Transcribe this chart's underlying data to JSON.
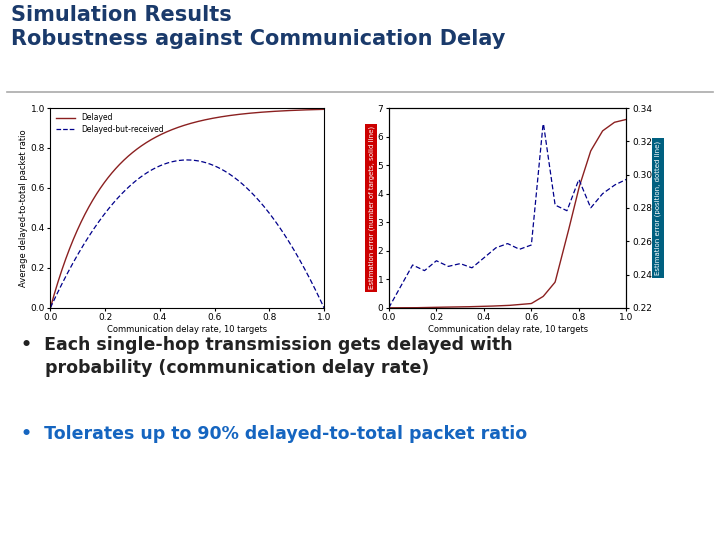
{
  "title_line1": "Simulation Results",
  "title_line2": "Robustness against Communication Delay",
  "title_color": "#1A3A6B",
  "title_fontsize": 15,
  "separator_color": "#AAAAAA",
  "bullet1_text": "Each single-hop transmission gets delayed with\n    probability (communication delay rate)",
  "bullet2_text": "Tolerates up to 90% delayed-to-total packet ratio",
  "bullet1_color": "#222222",
  "bullet2_color": "#1565C0",
  "bullet_fontsize": 12.5,
  "left_ylabel": "Average delayed-to-total packet ratio",
  "left_xlabel": "Communication delay rate, 10 targets",
  "left_line1_color": "#8B2020",
  "left_line2_color": "#00008B",
  "right_ylabel_left": "Estimation error (number of targets, solid line)",
  "right_ylabel_right": "Estimation error (position, dotted line)",
  "right_xlabel": "Communication delay rate, 10 targets",
  "right_line1_color": "#8B2020",
  "right_line2_color": "#00008B",
  "right_yaxis_bar_color_left": "#CC0000",
  "right_yaxis_bar_color_right": "#006080",
  "axis_label_fontsize": 6,
  "tick_fontsize": 6.5,
  "bg_color": "#FFFFFF"
}
